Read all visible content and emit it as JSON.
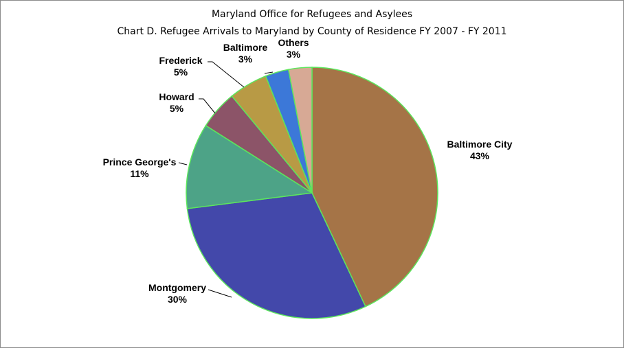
{
  "chart_data": {
    "type": "pie",
    "title": "Maryland Office for Refugees and Asylees",
    "subtitle": "Chart D.  Refugee Arrivals to Maryland by County of Residence FY 2007 - FY 2011",
    "legend": "none",
    "slices": [
      {
        "label": "Baltimore City",
        "value": 43,
        "display": "43%",
        "color": "#A57447"
      },
      {
        "label": "Montgomery",
        "value": 30,
        "display": "30%",
        "color": "#4348AA"
      },
      {
        "label": "Prince George's",
        "value": 11,
        "display": "11%",
        "color": "#4DA387"
      },
      {
        "label": "Howard",
        "value": 5,
        "display": "5%",
        "color": "#8C5468"
      },
      {
        "label": "Frederick",
        "value": 5,
        "display": "5%",
        "color": "#B89A45"
      },
      {
        "label": "Baltimore",
        "value": 3,
        "display": "3%",
        "color": "#3C78D8"
      },
      {
        "label": "Others",
        "value": 3,
        "display": "3%",
        "color": "#D7A995"
      }
    ],
    "slice_border_color": "#5CE65C"
  }
}
